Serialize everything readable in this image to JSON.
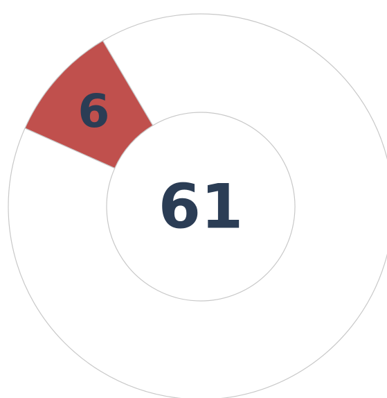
{
  "chart_data": {
    "type": "donut",
    "values": [
      6,
      55
    ],
    "colors": [
      "#c0504d",
      "#ffffff"
    ],
    "total": 61,
    "labeled": [
      true,
      false
    ],
    "stroke": "#c8c8c8"
  }
}
